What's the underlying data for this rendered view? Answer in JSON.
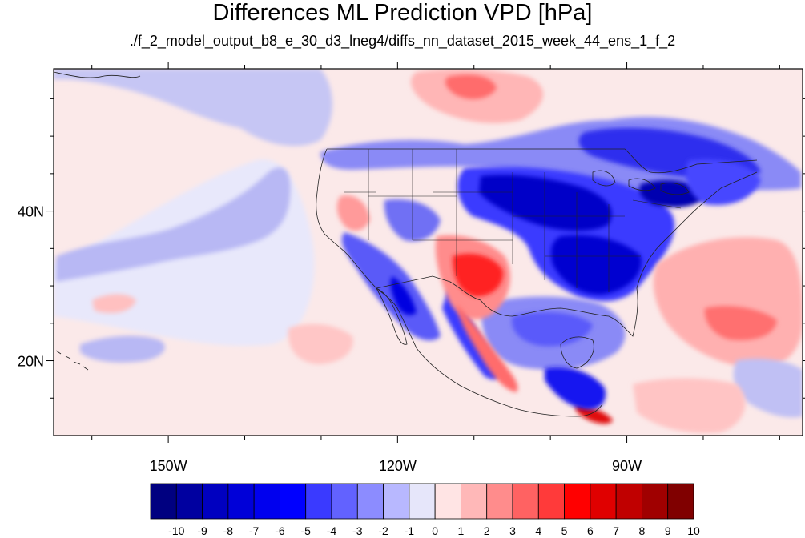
{
  "title": "Differences ML Prediction VPD [hPa]",
  "subtitle": "./f_2_model_output_b8_e_30_d3_lneg4/diffs_nn_dataset_2015_week_44_ens_1_f_2",
  "map": {
    "projection": "lat-lon",
    "lon_range": [
      -165,
      -67
    ],
    "lat_range": [
      10,
      59
    ],
    "lon_ticks": [
      {
        "value": -150,
        "label": "150W"
      },
      {
        "value": -120,
        "label": "120W"
      },
      {
        "value": -90,
        "label": "90W"
      }
    ],
    "lat_ticks": [
      {
        "value": 40,
        "label": "40N"
      },
      {
        "value": 20,
        "label": "20N"
      }
    ],
    "colors": {
      "ocean_background": "#fbe9e9",
      "coast_lines": "#222222"
    }
  },
  "colorbar": {
    "levels": [
      "-10",
      "-9",
      "-8",
      "-7",
      "-6",
      "-5",
      "-4",
      "-3",
      "-2",
      "-1",
      "0",
      "1",
      "2",
      "3",
      "4",
      "5",
      "6",
      "7",
      "8",
      "9",
      "10"
    ],
    "colors": [
      "#000080",
      "#0000a0",
      "#0000c0",
      "#0000d8",
      "#0000ee",
      "#0000ff",
      "#3a3aff",
      "#6262ff",
      "#8c8cff",
      "#b8b8ff",
      "#e6e6fa",
      "#ffe4e4",
      "#ffb8b8",
      "#ff8c8c",
      "#ff6262",
      "#ff3a3a",
      "#ff0000",
      "#e00000",
      "#c00000",
      "#a00000",
      "#800000"
    ]
  }
}
